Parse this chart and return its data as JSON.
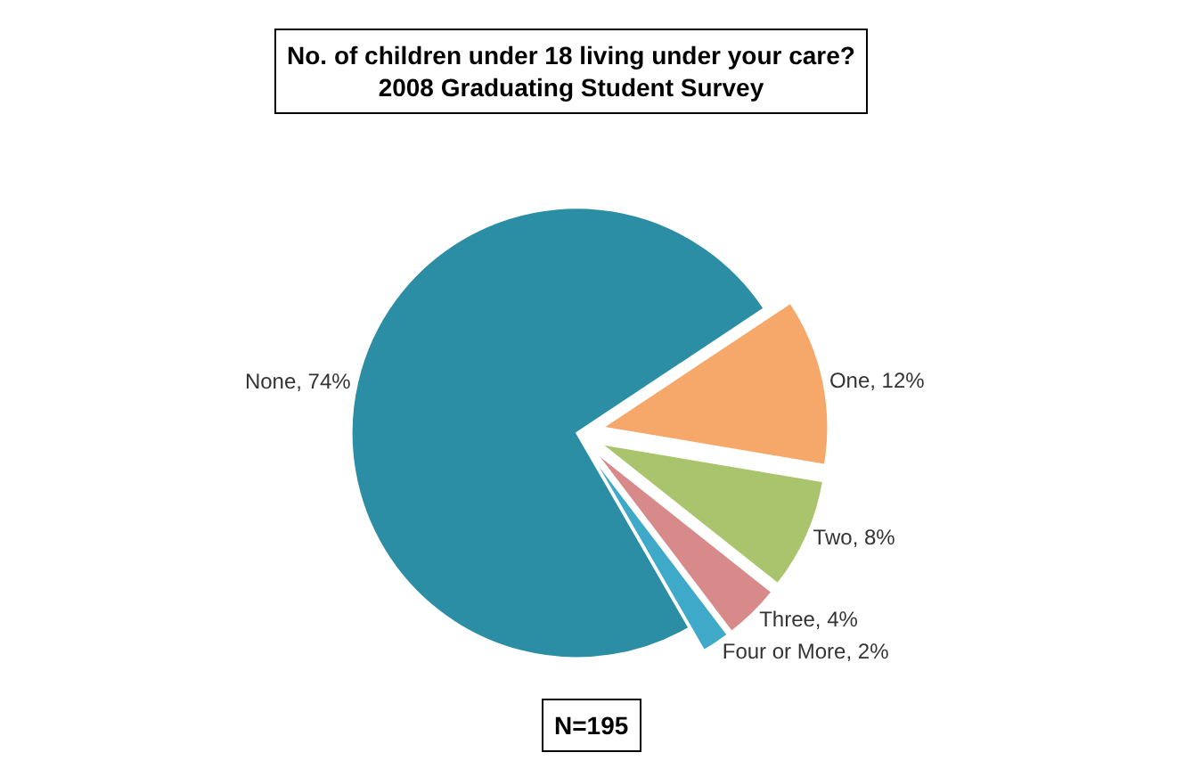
{
  "chart_data": {
    "type": "pie",
    "title": "No. of children under 18 living under your care?\n2008 Graduating Student Survey",
    "categories": [
      "None",
      "One",
      "Two",
      "Three",
      "Four or More"
    ],
    "values": [
      74,
      12,
      8,
      4,
      2
    ],
    "colors": [
      "#2b8ea5",
      "#f5a86a",
      "#a9c46c",
      "#d88a8a",
      "#3ea9c9"
    ],
    "value_labels": [
      "74%",
      "12%",
      "8%",
      "4%",
      "2%"
    ],
    "annotations": [
      "N=195"
    ],
    "legend": false
  }
}
